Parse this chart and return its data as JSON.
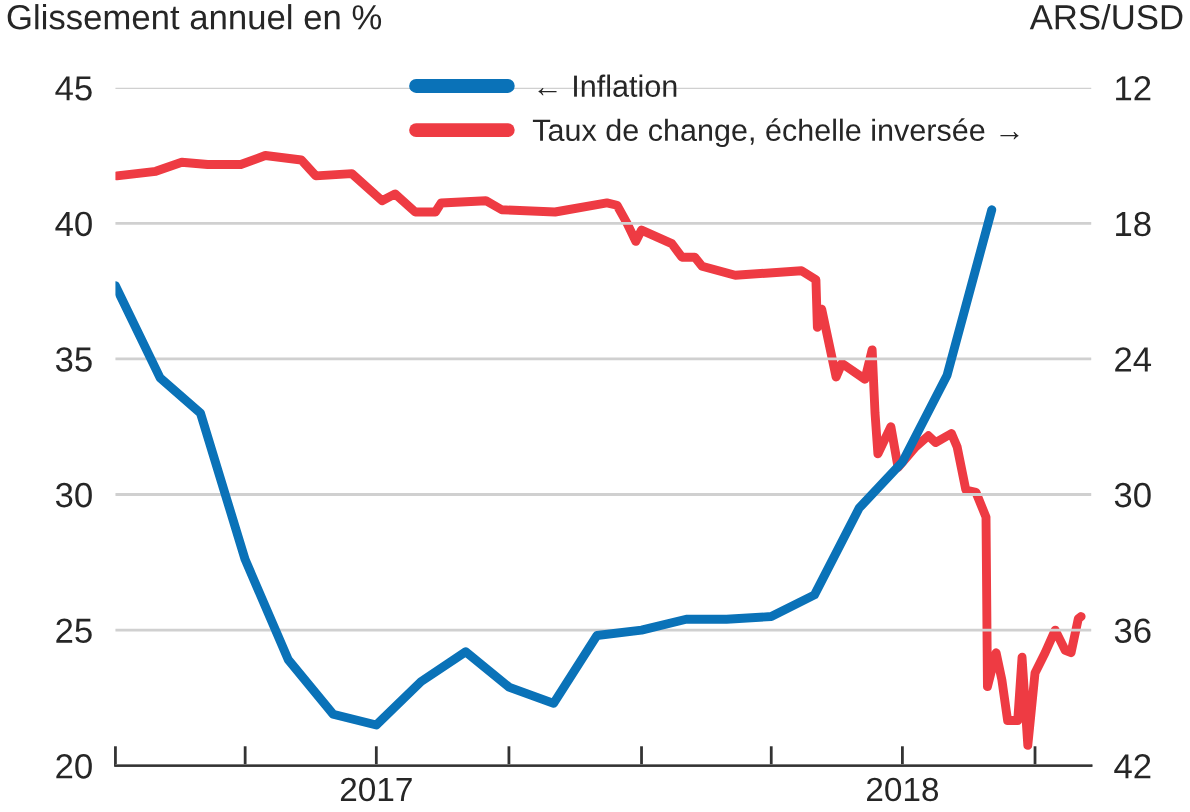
{
  "chart_data": {
    "type": "line",
    "ylabel": "Glissement annuel en %",
    "y2label": "ARS/USD",
    "xlim": [
      "2017-01-01",
      "2018-11-09"
    ],
    "xticks": [
      {
        "value": "2017-01-01",
        "label": null
      },
      {
        "value": "2017-04-01",
        "label": null
      },
      {
        "value": "2017-07-01",
        "label": "2017"
      },
      {
        "value": "2017-10-01",
        "label": null
      },
      {
        "value": "2018-01-01",
        "label": null
      },
      {
        "value": "2018-04-01",
        "label": null
      },
      {
        "value": "2018-07-01",
        "label": "2018"
      },
      {
        "value": "2018-10-01",
        "label": null
      }
    ],
    "ylim": [
      20,
      45
    ],
    "yticks": [
      20,
      25,
      30,
      35,
      40,
      45
    ],
    "y2lim": [
      42,
      12
    ],
    "y2ticks": [
      12,
      18,
      24,
      30,
      36,
      42
    ],
    "grid": "y",
    "legend": "top",
    "line_style": "solid",
    "marker": "none",
    "series": [
      {
        "name": "← Inflation",
        "color": "#0a72b8",
        "x": [
          "2017-01-01",
          "2017-02-01",
          "2017-03-01",
          "2017-04-01",
          "2017-05-01",
          "2017-06-01",
          "2017-07-01",
          "2017-08-01",
          "2017-09-01",
          "2017-10-01",
          "2017-11-01",
          "2017-12-01",
          "2018-01-01",
          "2018-02-01",
          "2018-03-01",
          "2018-04-01",
          "2018-05-01",
          "2018-06-01",
          "2018-07-01",
          "2018-08-01",
          "2018-09-01"
        ],
        "values": [
          37.7,
          34.3,
          33.0,
          27.6,
          23.9,
          21.9,
          21.5,
          23.1,
          24.2,
          22.9,
          22.3,
          24.8,
          25.0,
          25.4,
          25.4,
          25.5,
          26.3,
          29.5,
          31.2,
          34.4,
          40.5
        ]
      },
      {
        "name": "Taux de change, échelle inversée →",
        "color": "#ee3b43",
        "axis": "y2",
        "x": [
          "2017-01-02",
          "2017-01-29",
          "2017-02-16",
          "2017-03-06",
          "2017-03-29",
          "2017-04-15",
          "2017-05-10",
          "2017-05-20",
          "2017-06-14",
          "2017-07-05",
          "2017-07-14",
          "2017-07-28",
          "2017-08-11",
          "2017-08-15",
          "2017-09-15",
          "2017-09-26",
          "2017-11-02",
          "2017-12-08",
          "2017-12-15",
          "2017-12-22",
          "2017-12-28",
          "2018-01-01",
          "2018-01-22",
          "2018-01-29",
          "2018-02-07",
          "2018-02-12",
          "2018-03-07",
          "2018-04-22",
          "2018-05-02",
          "2018-05-03",
          "2018-05-06",
          "2018-05-16",
          "2018-05-20",
          "2018-06-05",
          "2018-06-10",
          "2018-06-12",
          "2018-06-14",
          "2018-06-23",
          "2018-06-28",
          "2018-07-10",
          "2018-07-19",
          "2018-07-24",
          "2018-08-04",
          "2018-08-08",
          "2018-08-14",
          "2018-08-21",
          "2018-08-28",
          "2018-08-29",
          "2018-09-04",
          "2018-09-08",
          "2018-09-12",
          "2018-09-19",
          "2018-09-22",
          "2018-09-26",
          "2018-10-01",
          "2018-10-08",
          "2018-10-15",
          "2018-10-22",
          "2018-10-26",
          "2018-10-31",
          "2018-11-02"
        ],
        "values": [
          15.9,
          15.7,
          15.3,
          15.4,
          15.4,
          15.0,
          15.2,
          15.9,
          15.8,
          17.0,
          16.7,
          17.5,
          17.5,
          17.1,
          17.0,
          17.4,
          17.5,
          17.1,
          17.2,
          18.0,
          18.8,
          18.3,
          18.9,
          19.5,
          19.5,
          19.9,
          20.3,
          20.1,
          20.5,
          22.6,
          21.8,
          24.8,
          24.2,
          24.9,
          23.6,
          26.4,
          28.2,
          27.0,
          28.8,
          27.9,
          27.4,
          27.7,
          27.3,
          27.9,
          29.8,
          29.9,
          31.0,
          38.5,
          37.0,
          38.2,
          40.0,
          40.0,
          37.2,
          41.1,
          37.9,
          37.0,
          36.0,
          36.9,
          37.0,
          35.5,
          35.4
        ]
      }
    ]
  }
}
